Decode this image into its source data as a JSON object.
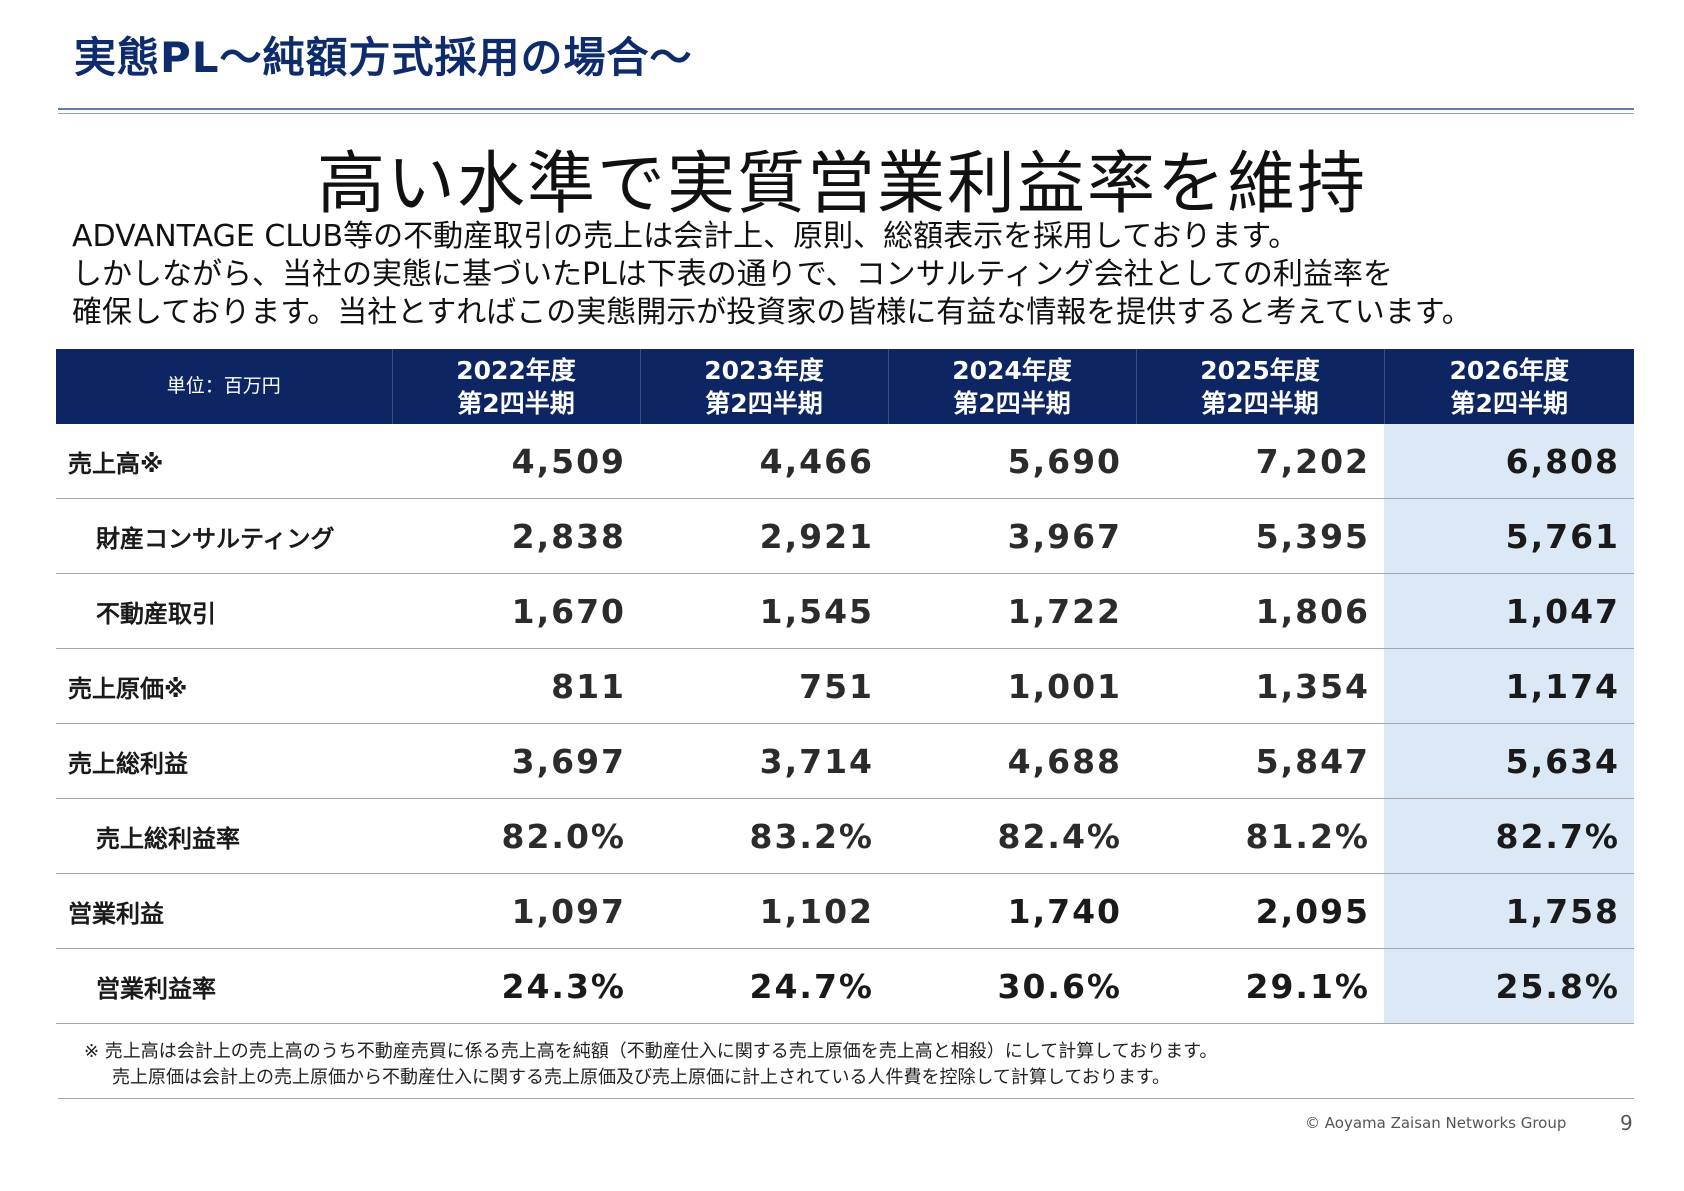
{
  "slide_title": "実態PL～純額方式採用の場合～",
  "headline": "高い水準で実質営業利益率を維持",
  "lead_lines": [
    "ADVANTAGE CLUB等の不動産取引の売上は会計上、原則、総額表示を採用しております。",
    "しかしながら、当社の実態に基づいたPLは下表の通りで、コンサルティング会社としての利益率を",
    "確保しております。当社とすればこの実態開示が投資家の皆様に有益な情報を提供すると考えています。"
  ],
  "table": {
    "unit_label": "単位：百万円",
    "columns": [
      {
        "year": "2022年度",
        "period": "第2四半期"
      },
      {
        "year": "2023年度",
        "period": "第2四半期"
      },
      {
        "year": "2024年度",
        "period": "第2四半期"
      },
      {
        "year": "2025年度",
        "period": "第2四半期"
      },
      {
        "year": "2026年度",
        "period": "第2四半期"
      }
    ],
    "rows": [
      {
        "label": "売上高※",
        "values": [
          "4,509",
          "4,466",
          "5,690",
          "7,202",
          "6,808"
        ]
      },
      {
        "label": "財産コンサルティング",
        "values": [
          "2,838",
          "2,921",
          "3,967",
          "5,395",
          "5,761"
        ]
      },
      {
        "label": "不動産取引",
        "values": [
          "1,670",
          "1,545",
          "1,722",
          "1,806",
          "1,047"
        ]
      },
      {
        "label": "売上原価※",
        "values": [
          "811",
          "751",
          "1,001",
          "1,354",
          "1,174"
        ]
      },
      {
        "label": "売上総利益",
        "values": [
          "3,697",
          "3,714",
          "4,688",
          "5,847",
          "5,634"
        ]
      },
      {
        "label": "売上総利益率",
        "values": [
          "82.0%",
          "83.2%",
          "82.4%",
          "81.2%",
          "82.7%"
        ]
      },
      {
        "label": "営業利益",
        "values": [
          "1,097",
          "1,102",
          "1,740",
          "2,095",
          "1,758"
        ]
      },
      {
        "label": "営業利益率",
        "values": [
          "24.3%",
          "24.7%",
          "30.6%",
          "29.1%",
          "25.8%"
        ]
      }
    ]
  },
  "notes": {
    "line1": "※ 売上高は会計上の売上高のうち不動産売買に係る売上高を純額（不動産仕入に関する売上原価を売上高と相殺）にして計算しております。",
    "line2": "売上原価は会計上の売上原価から不動産仕入に関する売上原価及び売上原価に計上されている人件費を控除して計算しております。"
  },
  "footer": {
    "copyright": "© Aoyama Zaisan Networks Group",
    "page_number": "9"
  },
  "colors": {
    "title": "#0e2c6b",
    "table_header_bg": "#0e2563",
    "highlight_column_bg": "#dbe8f6"
  }
}
